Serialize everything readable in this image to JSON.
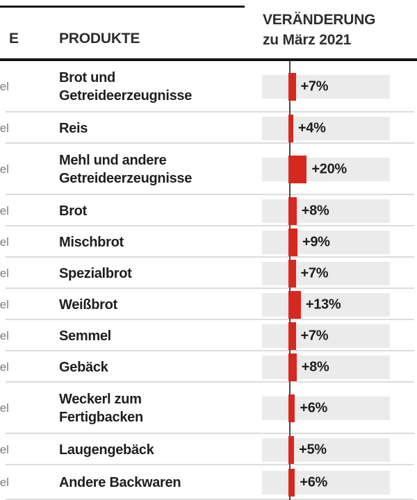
{
  "header": {
    "category_col_label_fragment": "E",
    "products_col_label": "PRODUKTE",
    "change_col_label_line1": "VERÄNDERUNG",
    "change_col_label_line2": "zu März 2021"
  },
  "rows": [
    {
      "category_fragment": "tel",
      "lines": [
        "Brot und",
        "Getreideerzeugnisse"
      ],
      "value": 7,
      "label": "+7%",
      "two_line": true
    },
    {
      "category_fragment": "tel",
      "lines": [
        "Reis"
      ],
      "value": 4,
      "label": "+4%",
      "two_line": false
    },
    {
      "category_fragment": "tel",
      "lines": [
        "Mehl und andere",
        "Getreideerzeugnisse"
      ],
      "value": 20,
      "label": "+20%",
      "two_line": true
    },
    {
      "category_fragment": "tel",
      "lines": [
        "Brot"
      ],
      "value": 8,
      "label": "+8%",
      "two_line": false
    },
    {
      "category_fragment": "tel",
      "lines": [
        "Mischbrot"
      ],
      "value": 9,
      "label": "+9%",
      "two_line": false
    },
    {
      "category_fragment": "tel",
      "lines": [
        "Spezialbrot"
      ],
      "value": 7,
      "label": "+7%",
      "two_line": false
    },
    {
      "category_fragment": "tel",
      "lines": [
        "Weißbrot"
      ],
      "value": 13,
      "label": "+13%",
      "two_line": false
    },
    {
      "category_fragment": "tel",
      "lines": [
        "Semmel"
      ],
      "value": 7,
      "label": "+7%",
      "two_line": false
    },
    {
      "category_fragment": "tel",
      "lines": [
        "Gebäck"
      ],
      "value": 8,
      "label": "+8%",
      "two_line": false
    },
    {
      "category_fragment": "tel",
      "lines": [
        "Weckerl zum",
        "Fertigbacken"
      ],
      "value": 6,
      "label": "+6%",
      "two_line": true
    },
    {
      "category_fragment": "tel",
      "lines": [
        "Laugengebäck"
      ],
      "value": 5,
      "label": "+5%",
      "two_line": false
    },
    {
      "category_fragment": "tel",
      "lines": [
        "Andere Backwaren"
      ],
      "value": 6,
      "label": "+6%",
      "two_line": false
    }
  ],
  "colors": {
    "bar": "#d7281f",
    "track": "#ebebeb",
    "axis": "#484848",
    "divider": "#dcdcdc",
    "text": "#1e1e1e",
    "muted": "#7c7c7c",
    "rule": "#151515"
  },
  "chart_data": {
    "type": "bar",
    "orientation": "horizontal",
    "title": "VERÄNDERUNG zu März 2021",
    "column_headers": [
      "PRODUKTE",
      "VERÄNDERUNG zu März 2021"
    ],
    "categories": [
      "Brot und Getreideerzeugnisse",
      "Reis",
      "Mehl und andere Getreideerzeugnisse",
      "Brot",
      "Mischbrot",
      "Spezialbrot",
      "Weißbrot",
      "Semmel",
      "Gebäck",
      "Weckerl zum Fertigbacken",
      "Laugengebäck",
      "Andere Backwaren"
    ],
    "values": [
      7,
      4,
      20,
      8,
      9,
      7,
      13,
      7,
      8,
      6,
      5,
      6
    ],
    "value_labels": [
      "+7%",
      "+4%",
      "+20%",
      "+8%",
      "+9%",
      "+7%",
      "+13%",
      "+7%",
      "+8%",
      "+6%",
      "+5%",
      "+6%"
    ],
    "unit": "%",
    "baseline": 0,
    "bar_color": "#d7281f",
    "legend": "none",
    "grid": "zero-axis-only"
  }
}
